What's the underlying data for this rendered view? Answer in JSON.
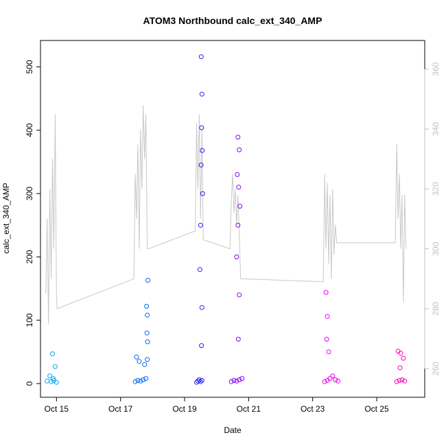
{
  "chart_data": {
    "type": "scatter",
    "title": "ATOM3 Northbound calc_ext_340_AMP",
    "xlabel": "Date",
    "ylabel": "calc_ext_340_AMP",
    "xlim": [
      "2023-10-14 12:00",
      "2023-10-26 12:00"
    ],
    "ylim": [
      0,
      520
    ],
    "y2lim": [
      255,
      365
    ],
    "grid": false,
    "legend": "none",
    "x_ticks": [
      {
        "date": "2023-10-15",
        "label": "Oct 15"
      },
      {
        "date": "2023-10-17",
        "label": "Oct 17"
      },
      {
        "date": "2023-10-19",
        "label": "Oct 19"
      },
      {
        "date": "2023-10-21",
        "label": "Oct 21"
      },
      {
        "date": "2023-10-23",
        "label": "Oct 23"
      },
      {
        "date": "2023-10-25",
        "label": "Oct 25"
      }
    ],
    "y_ticks": [
      0,
      100,
      200,
      300,
      400,
      500
    ],
    "y2_ticks": [
      260,
      280,
      300,
      320,
      340,
      360
    ],
    "series": [
      {
        "color": "#00a6f2",
        "x": [
          "2023-10-14 17:00",
          "2023-10-14 20:00",
          "2023-10-14 22:00",
          "2023-10-15 00:00",
          "2023-10-14 21:00",
          "2023-10-14 23:00",
          "2023-10-14 19:00",
          "2023-10-14 21:30"
        ],
        "y": [
          4,
          3,
          5,
          2,
          47,
          27,
          12,
          8
        ]
      },
      {
        "color": "#0066f2",
        "x": [
          "2023-10-17 11:00",
          "2023-10-17 13:00",
          "2023-10-17 15:00",
          "2023-10-17 17:00",
          "2023-10-17 19:00",
          "2023-10-17 12:00",
          "2023-10-17 14:00",
          "2023-10-17 18:00",
          "2023-10-17 20:00",
          "2023-10-17 20:30",
          "2023-10-17 19:30",
          "2023-10-17 20:00",
          "2023-10-17 19:45",
          "2023-10-17 20:15"
        ],
        "y": [
          3,
          5,
          4,
          6,
          8,
          42,
          35,
          30,
          38,
          163,
          122,
          108,
          80,
          66
        ]
      },
      {
        "color": "#1f1ff2",
        "x": [
          "2023-10-19 09:00",
          "2023-10-19 10:00",
          "2023-10-19 11:00",
          "2023-10-19 12:00",
          "2023-10-19 13:00",
          "2023-10-19 12:30",
          "2023-10-19 13:00",
          "2023-10-19 12:45",
          "2023-10-19 13:15",
          "2023-10-19 12:20",
          "2023-10-19 13:30",
          "2023-10-19 12:00",
          "2023-10-19 11:30",
          "2023-10-19 13:00",
          "2023-10-19 12:40"
        ],
        "y": [
          2,
          4,
          6,
          3,
          5,
          516,
          457,
          404,
          368,
          345,
          300,
          250,
          180,
          120,
          60
        ]
      },
      {
        "color": "#8a00f2",
        "x": [
          "2023-10-20 11:00",
          "2023-10-20 13:00",
          "2023-10-20 15:00",
          "2023-10-20 17:00",
          "2023-10-20 19:00",
          "2023-10-20 16:00",
          "2023-10-20 17:00",
          "2023-10-20 15:30",
          "2023-10-20 16:30",
          "2023-10-20 17:30",
          "2023-10-20 16:00",
          "2023-10-20 15:00",
          "2023-10-20 17:00",
          "2023-10-20 16:15"
        ],
        "y": [
          3,
          5,
          4,
          6,
          8,
          389,
          369,
          330,
          310,
          280,
          250,
          200,
          140,
          70
        ]
      },
      {
        "color": "#ea00f2",
        "x": [
          "2023-10-23 09:00",
          "2023-10-23 11:00",
          "2023-10-23 13:00",
          "2023-10-23 15:00",
          "2023-10-23 17:00",
          "2023-10-23 19:00",
          "2023-10-23 10:00",
          "2023-10-23 11:00",
          "2023-10-23 10:30",
          "2023-10-23 12:00"
        ],
        "y": [
          3,
          5,
          8,
          12,
          6,
          4,
          144,
          106,
          70,
          50
        ]
      },
      {
        "color": "#ff00bb",
        "x": [
          "2023-10-25 15:00",
          "2023-10-25 17:00",
          "2023-10-25 19:00",
          "2023-10-25 21:00",
          "2023-10-25 16:00",
          "2023-10-25 18:00",
          "2023-10-25 20:00",
          "2023-10-25 17:30"
        ],
        "y": [
          3,
          5,
          6,
          4,
          51,
          48,
          40,
          25
        ]
      }
    ],
    "line_series": {
      "axis": "right",
      "color": "#c8c8c8",
      "x": [
        "2023-10-14 16:00",
        "2023-10-14 17:00",
        "2023-10-14 18:00",
        "2023-10-14 19:00",
        "2023-10-14 20:00",
        "2023-10-14 21:00",
        "2023-10-14 22:00",
        "2023-10-14 23:00",
        "2023-10-15 00:00",
        "2023-10-15 00:30",
        "2023-10-17 10:00",
        "2023-10-17 11:00",
        "2023-10-17 12:00",
        "2023-10-17 13:00",
        "2023-10-17 14:00",
        "2023-10-17 15:00",
        "2023-10-17 16:00",
        "2023-10-17 17:00",
        "2023-10-17 18:00",
        "2023-10-17 19:00",
        "2023-10-17 20:00",
        "2023-10-17 21:00",
        "2023-10-19 08:00",
        "2023-10-19 09:00",
        "2023-10-19 10:00",
        "2023-10-19 11:00",
        "2023-10-19 12:00",
        "2023-10-19 13:00",
        "2023-10-19 14:00",
        "2023-10-20 10:00",
        "2023-10-20 11:00",
        "2023-10-20 12:00",
        "2023-10-20 13:00",
        "2023-10-20 14:00",
        "2023-10-20 15:00",
        "2023-10-20 16:00",
        "2023-10-20 17:00",
        "2023-10-20 18:00",
        "2023-10-23 08:00",
        "2023-10-23 09:00",
        "2023-10-23 10:00",
        "2023-10-23 11:00",
        "2023-10-23 12:00",
        "2023-10-23 13:00",
        "2023-10-23 14:00",
        "2023-10-23 15:00",
        "2023-10-23 16:00",
        "2023-10-23 17:00",
        "2023-10-23 18:00",
        "2023-10-25 14:00",
        "2023-10-25 15:00",
        "2023-10-25 16:00",
        "2023-10-25 17:00",
        "2023-10-25 18:00",
        "2023-10-25 19:00",
        "2023-10-25 20:00",
        "2023-10-25 21:00",
        "2023-10-25 22:00"
      ],
      "y": [
        285,
        310,
        275,
        320,
        290,
        330,
        300,
        345,
        285,
        280,
        290,
        325,
        310,
        335,
        300,
        340,
        320,
        348,
        330,
        345,
        300,
        300,
        306,
        342,
        320,
        345,
        310,
        340,
        303,
        300,
        316,
        325,
        312,
        320,
        308,
        318,
        305,
        290,
        289,
        325,
        300,
        322,
        295,
        318,
        290,
        320,
        298,
        308,
        302,
        302,
        335,
        310,
        325,
        300,
        318,
        282,
        318,
        300
      ]
    }
  }
}
